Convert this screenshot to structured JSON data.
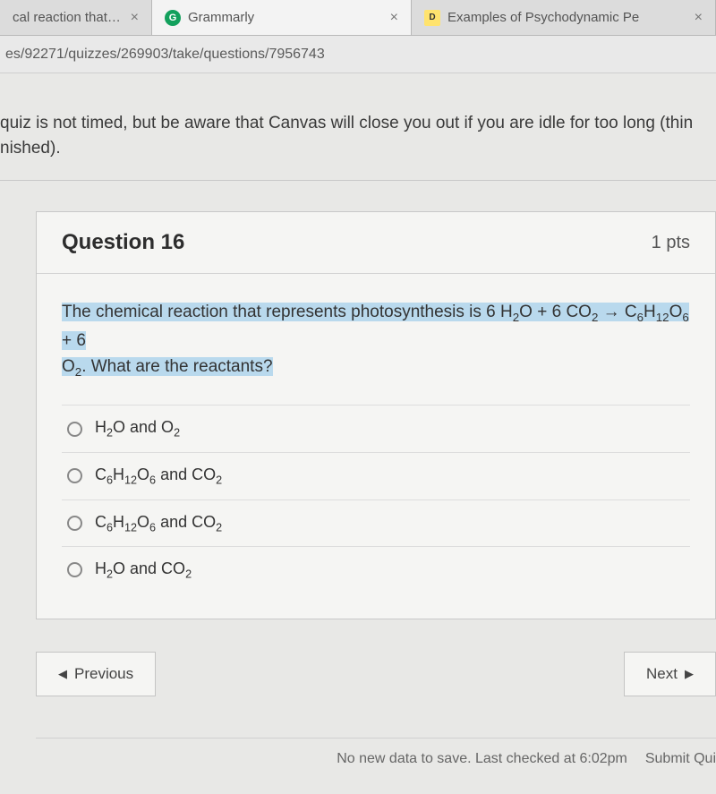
{
  "tabs": {
    "t0": {
      "title": "cal reaction that repre"
    },
    "t1": {
      "title": "Grammarly"
    },
    "t2": {
      "title": "Examples of Psychodynamic Pe"
    }
  },
  "url": "es/92271/quizzes/269903/take/questions/7956743",
  "notice": "quiz is not timed, but be aware that Canvas will close you out if you are idle for too long (thin",
  "notice2": "nished).",
  "question": {
    "label": "Question 16",
    "points": "1 pts",
    "stem_a": "The chemical reaction that represents photosynthesis is 6 H",
    "stem_b": "O + 6 CO",
    "stem_c": " → C",
    "stem_d": "H",
    "stem_e": "O",
    "stem_f": " + 6",
    "stem_g": "O",
    "stem_h": ". What are the reactants?",
    "sub2": "2",
    "sub6": "6",
    "sub12": "12"
  },
  "options": {
    "a_1": "H",
    "a_2": "O and O",
    "b_1": "C",
    "b_2": "H",
    "b_3": "O",
    "b_4": " and CO",
    "c_1": "C",
    "c_2": "H",
    "c_3": "O",
    "c_4": " and CO",
    "d_1": "H",
    "d_2": "O and CO"
  },
  "nav": {
    "prev": "Previous",
    "next": "Next"
  },
  "save": {
    "msg": "No new data to save. Last checked at 6:02pm",
    "btn": "Submit Qui"
  }
}
